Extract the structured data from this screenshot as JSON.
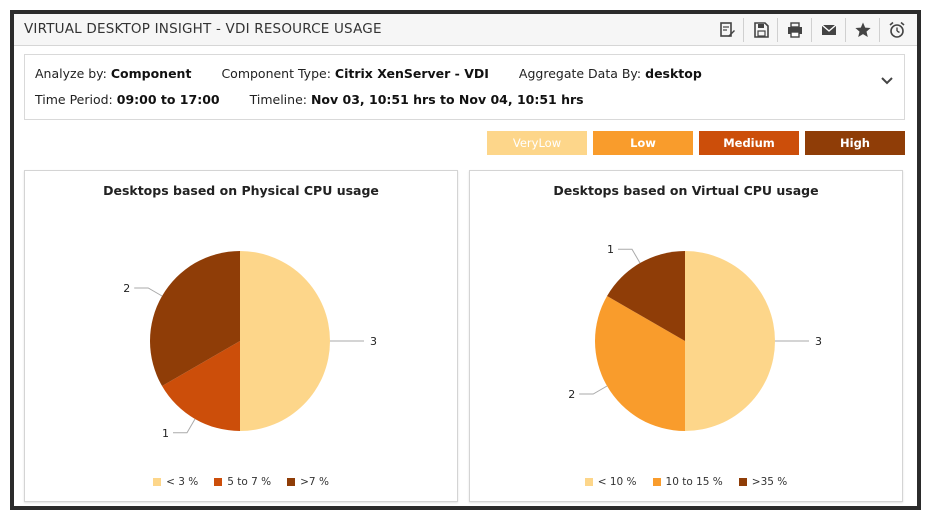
{
  "window": {
    "title": "VIRTUAL DESKTOP INSIGHT - VDI RESOURCE USAGE"
  },
  "toolbar": {
    "icons": [
      "edit-report-icon",
      "save-icon",
      "print-icon",
      "mail-icon",
      "favorite-star-icon",
      "alarm-clock-icon"
    ]
  },
  "filters": {
    "analyze_by_label": "Analyze by:",
    "analyze_by_value": "Component",
    "component_type_label": "Component Type:",
    "component_type_value": "Citrix XenServer - VDI",
    "aggregate_label": "Aggregate Data By:",
    "aggregate_value": "desktop",
    "time_period_label": "Time Period:",
    "time_period_value": "09:00 to 17:00",
    "timeline_label": "Timeline:",
    "timeline_value": "Nov 03, 10:51 hrs to Nov 04, 10:51 hrs"
  },
  "severity_legend": [
    {
      "label": "VeryLow",
      "color": "#fdd68a"
    },
    {
      "label": "Low",
      "color": "#f99c2c"
    },
    {
      "label": "Medium",
      "color": "#cc4e0a"
    },
    {
      "label": "High",
      "color": "#8f3d07"
    }
  ],
  "chart_data": [
    {
      "type": "pie",
      "title": "Desktops based on Physical CPU usage",
      "categories": [
        "< 3 %",
        "5 to 7 %",
        ">7 %"
      ],
      "values": [
        3,
        1,
        2
      ],
      "colors": [
        "#fdd68a",
        "#cc4e0a",
        "#8f3d07"
      ],
      "legend": "bottom"
    },
    {
      "type": "pie",
      "title": "Desktops based on Virtual CPU usage",
      "categories": [
        "< 10 %",
        "10 to 15 %",
        ">35 %"
      ],
      "values": [
        3,
        2,
        1
      ],
      "colors": [
        "#fdd68a",
        "#f99c2c",
        "#8f3d07"
      ],
      "legend": "bottom"
    }
  ]
}
